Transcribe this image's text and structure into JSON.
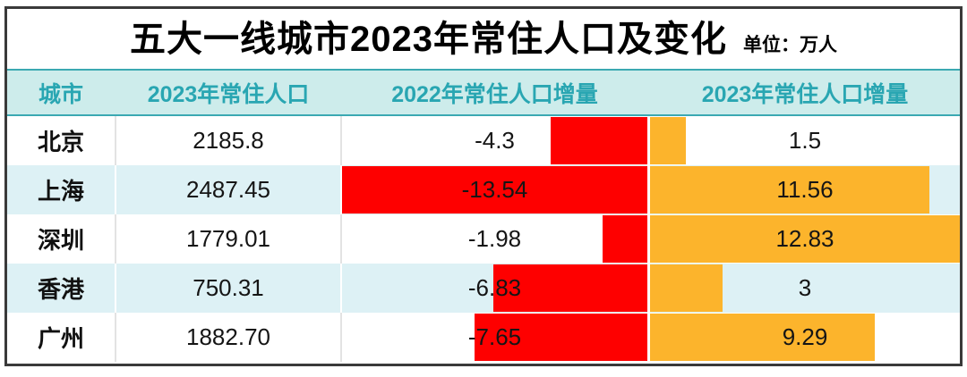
{
  "title": {
    "text": "五大一线城市2023年常住人口及变化",
    "unit_label": "单位：万人"
  },
  "colors": {
    "negative_bar": "#fe0000",
    "positive_bar": "#fcb42c",
    "header_bg": "#cdeceb",
    "header_text": "#29a6b2",
    "header_border": "#3ba9b2",
    "alt_row_bg": "#ddf1f5",
    "frame_border": "#3a3a3a"
  },
  "table": {
    "columns": [
      "城市",
      "2023年常住人口",
      "2022年常住人口增量",
      "2023年常住人口增量"
    ],
    "rows": [
      {
        "city": "北京",
        "population_2023": "2185.8",
        "increment_2022": "-4.3",
        "increment_2023": "1.5"
      },
      {
        "city": "上海",
        "population_2023": "2487.45",
        "increment_2022": "-13.54",
        "increment_2023": "11.56"
      },
      {
        "city": "深圳",
        "population_2023": "1779.01",
        "increment_2022": "-1.98",
        "increment_2023": "12.83"
      },
      {
        "city": "香港",
        "population_2023": "750.31",
        "increment_2022": "-6.83",
        "increment_2023": "3"
      },
      {
        "city": "广州",
        "population_2023": "1882.70",
        "increment_2022": "-7.65",
        "increment_2023": "9.29"
      }
    ]
  },
  "chart_data": {
    "type": "bar",
    "title": "五大一线城市2023年常住人口及变化",
    "unit": "万人",
    "categories": [
      "北京",
      "上海",
      "深圳",
      "香港",
      "广州"
    ],
    "series": [
      {
        "name": "2023年常住人口",
        "values": [
          2185.8,
          2487.45,
          1779.01,
          750.31,
          1882.7
        ],
        "display": "text"
      },
      {
        "name": "2022年常住人口增量",
        "values": [
          -4.3,
          -13.54,
          -1.98,
          -6.83,
          -7.65
        ],
        "display": "bar",
        "bar_color": "#fe0000",
        "bar_align": "right",
        "scale_max": 13.54
      },
      {
        "name": "2023年常住人口增量",
        "values": [
          1.5,
          11.56,
          12.83,
          3,
          9.29
        ],
        "display": "bar",
        "bar_color": "#fcb42c",
        "bar_align": "left",
        "scale_max": 12.83
      }
    ],
    "layout": {
      "orientation": "horizontal-in-table",
      "grid": false,
      "legend": "column-headers"
    }
  }
}
